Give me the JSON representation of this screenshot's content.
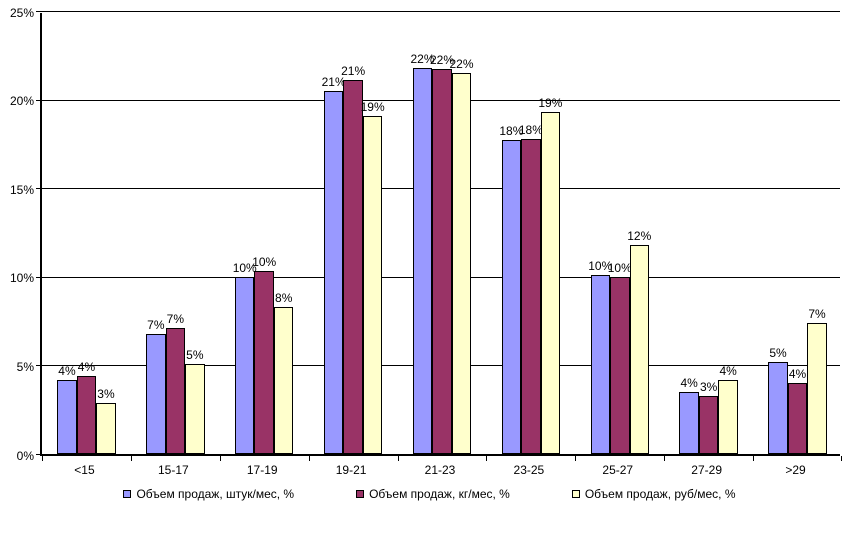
{
  "chart_data": {
    "type": "bar",
    "title": "",
    "categories": [
      "<15",
      "15-17",
      "17-19",
      "19-21",
      "21-23",
      "23-25",
      "25-27",
      "27-29",
      ">29"
    ],
    "series": [
      {
        "name": "Объем продаж, штук/мес, %",
        "color": "#9999FF",
        "values": [
          4.2,
          6.8,
          10.0,
          20.5,
          21.8,
          17.7,
          10.1,
          3.5,
          5.2
        ],
        "labels": [
          "4%",
          "7%",
          "10%",
          "21%",
          "22%",
          "18%",
          "10%",
          "4%",
          "5%"
        ]
      },
      {
        "name": "Объем продаж, кг/мес, %",
        "color": "#993366",
        "values": [
          4.4,
          7.1,
          10.3,
          21.1,
          21.7,
          17.8,
          10.0,
          3.3,
          4.0
        ],
        "labels": [
          "4%",
          "7%",
          "10%",
          "21%",
          "22%",
          "18%",
          "10%",
          "3%",
          "4%"
        ]
      },
      {
        "name": "Объем продаж, руб/мес, %",
        "color": "#FFFFCC",
        "values": [
          2.9,
          5.1,
          8.3,
          19.1,
          21.5,
          19.3,
          11.8,
          4.2,
          7.4
        ],
        "labels": [
          "3%",
          "5%",
          "8%",
          "19%",
          "22%",
          "19%",
          "12%",
          "4%",
          "7%"
        ]
      }
    ],
    "ylim": [
      0,
      25
    ],
    "ytick_interval": 5,
    "ytick_labels": [
      "0%",
      "5%",
      "10%",
      "15%",
      "20%",
      "25%"
    ],
    "grid": true,
    "legend_position": "bottom",
    "background_color": "#FFFFFF",
    "axis_color": "#000000",
    "label_color": "#000000"
  }
}
